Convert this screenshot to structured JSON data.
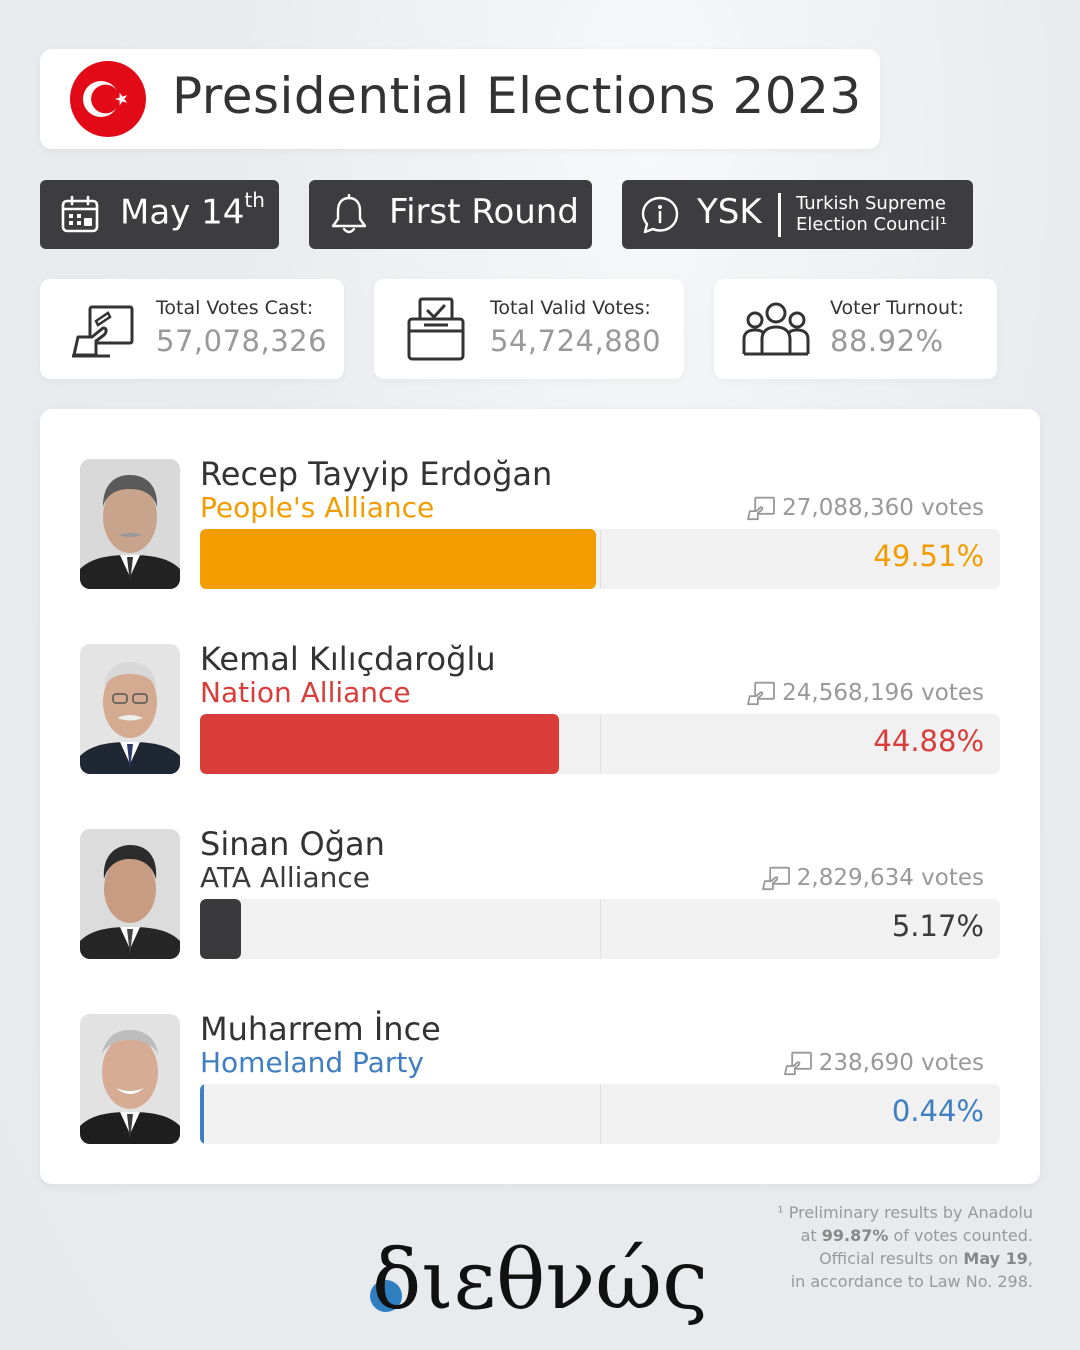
{
  "header": {
    "title": "Presidential Elections 2023",
    "flag_colors": {
      "red": "#e30a17",
      "white": "#ffffff"
    }
  },
  "pills": {
    "date_main": "May 14",
    "date_sup": "th",
    "round": "First Round",
    "source_abbr": "YSK",
    "source_line1": "Turkish Supreme",
    "source_line2": "Election Council¹"
  },
  "stats": {
    "total_cast_label": "Total Votes Cast:",
    "total_cast_value": "57,078,326",
    "valid_label": "Total Valid Votes:",
    "valid_value": "54,724,880",
    "turnout_label": "Voter Turnout:",
    "turnout_value": "88.92%"
  },
  "chart_data": {
    "type": "bar",
    "orientation": "horizontal",
    "xlim": [
      0,
      100
    ],
    "categories": [
      "Recep Tayyip Erdoğan",
      "Kemal Kılıçdaroğlu",
      "Sinan Oğan",
      "Muharrem İnce"
    ],
    "values": [
      49.51,
      44.88,
      5.17,
      0.44
    ],
    "candidates": [
      {
        "name": "Recep Tayyip Erdoğan",
        "party": "People's Alliance",
        "votes": "27,088,360 votes",
        "percent_label": "49.51%",
        "percent": 49.51,
        "color": "#f39c00"
      },
      {
        "name": "Kemal Kılıçdaroğlu",
        "party": "Nation Alliance",
        "votes": "24,568,196 votes",
        "percent_label": "44.88%",
        "percent": 44.88,
        "color": "#d93d39"
      },
      {
        "name": "Sinan Oğan",
        "party": "ATA Alliance",
        "votes": "2,829,634 votes",
        "percent_label": "5.17%",
        "percent": 5.17,
        "color": "#3a3a3c"
      },
      {
        "name": "Muharrem İnce",
        "party": "Homeland Party",
        "votes": "238,690 votes",
        "percent_label": "0.44%",
        "percent": 0.44,
        "color": "#3f7fc1"
      }
    ]
  },
  "footnote": {
    "line1_pre": "¹ Preliminary results by Anadolu",
    "line2_bold": "99.87%",
    "line2_pre": "at ",
    "line2_post": " of votes counted.",
    "line3_pre": "Official results on ",
    "line3_bold": "May 19",
    "line3_post": ",",
    "line4": "in accordance to Law No. 298."
  },
  "logo": {
    "text": "διεθνώς",
    "accent_color": "#2f7fc0"
  }
}
